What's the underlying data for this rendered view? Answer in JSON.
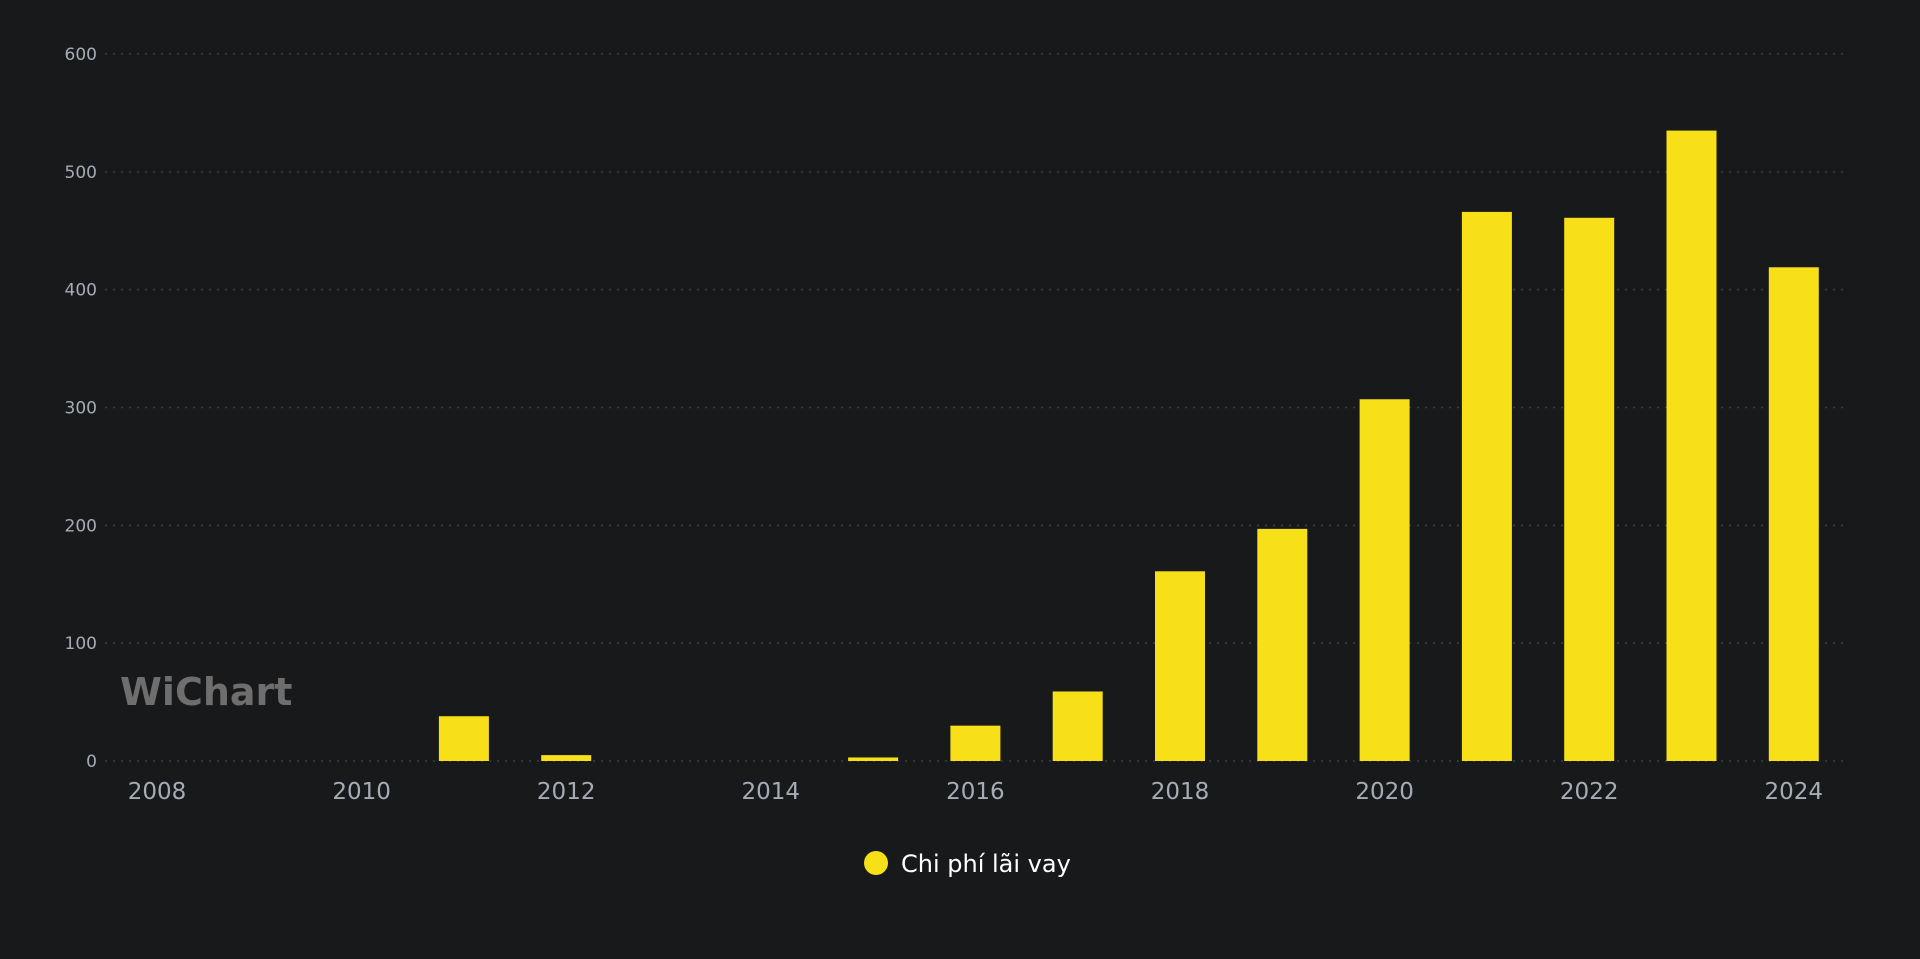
{
  "chart_data": {
    "type": "bar",
    "categories": [
      "2008",
      "2009",
      "2010",
      "2011",
      "2012",
      "2013",
      "2014",
      "2015",
      "2016",
      "2017",
      "2018",
      "2019",
      "2020",
      "2021",
      "2022",
      "2023",
      "2024"
    ],
    "x_tick_labels": [
      "2008",
      "2010",
      "2012",
      "2014",
      "2016",
      "2018",
      "2020",
      "2022",
      "2024"
    ],
    "series": [
      {
        "name": "Chi phí lãi vay",
        "color": "#f7e017",
        "values": [
          0,
          0,
          0,
          38,
          5,
          0,
          0,
          3,
          30,
          59,
          161,
          197,
          307,
          466,
          461,
          535,
          419
        ]
      }
    ],
    "ylim": [
      0,
      600
    ],
    "y_ticks": [
      0,
      100,
      200,
      300,
      400,
      500,
      600
    ],
    "grid": true,
    "grid_style": "dotted",
    "legend_placement": "bottom-center",
    "title": "",
    "xlabel": "",
    "ylabel": ""
  },
  "watermark": {
    "text": "WiChart"
  },
  "colors": {
    "background": "#18191b",
    "bar": "#f7e017",
    "tick_text": "#a6acb6",
    "legend_text": "#ffffff"
  }
}
